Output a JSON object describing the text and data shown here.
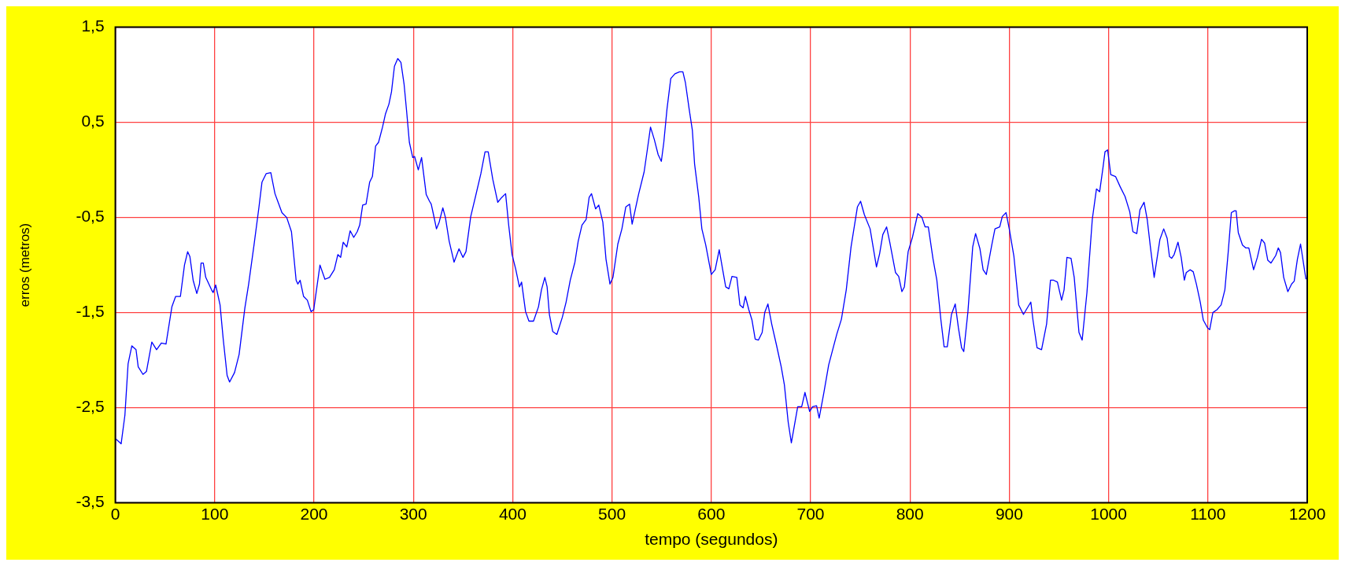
{
  "chart_data": {
    "type": "line",
    "xlabel": "tempo (segundos)",
    "ylabel": "erros (metros)",
    "xlim": [
      0,
      1200
    ],
    "xticks": [
      0,
      100,
      200,
      300,
      400,
      500,
      600,
      700,
      800,
      900,
      1000,
      1100,
      1200
    ],
    "ylim": [
      -3.5,
      1.5
    ],
    "yticks": [
      {
        "value": -3.5,
        "label": "-3,5"
      },
      {
        "value": -2.5,
        "label": "-2,5"
      },
      {
        "value": -1.5,
        "label": "-1,5"
      },
      {
        "value": -0.5,
        "label": "-0,5"
      },
      {
        "value": 0.5,
        "label": "0,5"
      },
      {
        "value": 1.5,
        "label": "1,5"
      }
    ],
    "grid": true,
    "marker": "none",
    "line_style": "solid",
    "x": [
      0.6,
      5.8,
      9.6,
      12.8,
      16.6,
      20.8,
      23,
      27.8,
      31.3,
      36.7,
      41.5,
      46.3,
      51,
      56.9,
      60.7,
      65.5,
      69.6,
      72.8,
      75,
      78.3,
      82,
      84.7,
      86.3,
      88.5,
      91,
      96.8,
      98.4,
      101,
      105.4,
      108.6,
      112.5,
      115,
      120,
      124.6,
      130.4,
      134.2,
      139.6,
      144.6,
      147.6,
      151.8,
      156.5,
      160.7,
      167.7,
      172.5,
      177.3,
      182,
      183.7,
      186,
      189.5,
      193.3,
      197,
      199.7,
      206,
      211,
      215.6,
      220.4,
      224,
      226.8,
      229.4,
      233,
      236.4,
      240,
      243.5,
      246,
      249,
      252.4,
      256,
      258.8,
      262,
      265,
      269,
      272,
      275.4,
      278,
      281,
      284.3,
      287.5,
      290.7,
      293.3,
      296,
      299.4,
      301.3,
      305,
      308.3,
      313,
      316.3,
      318,
      320.1,
      323.3,
      326,
      329.7,
      332.3,
      336.1,
      341,
      346,
      350,
      353,
      357.8,
      362.6,
      368,
      372.2,
      375.4,
      380,
      385,
      389,
      392.9,
      396,
      399.4,
      403,
      406.8,
      409,
      413,
      416.4,
      421,
      426,
      429,
      432.4,
      434.7,
      437,
      440.4,
      444.5,
      450,
      453.8,
      458,
      462.7,
      466,
      469.8,
      474,
      477,
      479.4,
      483.5,
      486.7,
      490.8,
      494,
      498,
      501,
      505.9,
      510,
      513.9,
      517.7,
      520.3,
      523.4,
      526.7,
      532.4,
      535.7,
      538.8,
      542.6,
      546.5,
      549.7,
      552.2,
      555.4,
      559.2,
      563.4,
      568,
      571.4,
      573.9,
      577.7,
      580.9,
      583.2,
      587.4,
      590.5,
      594.4,
      600,
      603.9,
      608,
      611.3,
      614.5,
      617.7,
      620.8,
      625.7,
      628.8,
      632,
      634.3,
      637.8,
      641,
      644.2,
      647.4,
      651.2,
      653.8,
      657,
      660.8,
      665.6,
      670.4,
      673.6,
      677.4,
      680.6,
      683.8,
      687,
      691,
      694.3,
      699,
      702,
      706,
      708.6,
      713.4,
      718.2,
      723,
      726.3,
      731,
      735.9,
      740.7,
      747.1,
      750.3,
      754.1,
      759.9,
      766.3,
      769.5,
      772.7,
      776.5,
      779.7,
      785.5,
      788.7,
      791.9,
      794.4,
      798.2,
      802.5,
      807.9,
      812.1,
      815.3,
      818.5,
      823.3,
      827.1,
      831.2,
      834.4,
      837.6,
      841.8,
      845.6,
      848.8,
      852,
      854.2,
      858.4,
      863.2,
      866.1,
      870.5,
      873.7,
      876.9,
      882.4,
      885.6,
      890.4,
      893,
      896.8,
      900,
      904.7,
      909.5,
      914.3,
      921.7,
      923.9,
      928,
      932.5,
      937.6,
      941.5,
      944.7,
      948.5,
      952.7,
      955.2,
      958.1,
      962.2,
      965.4,
      970.2,
      973.4,
      978.2,
      983.6,
      987.8,
      991,
      994.2,
      996.4,
      999,
      1002.2,
      1007,
      1011.8,
      1016.6,
      1021.3,
      1024.5,
      1028.4,
      1031.6,
      1035.7,
      1038.9,
      1042.1,
      1045.9,
      1051.7,
      1055.5,
      1059,
      1061.3,
      1063.5,
      1066,
      1069.9,
      1073.1,
      1076.3,
      1078.2,
      1082,
      1085.2,
      1088.4,
      1092.3,
      1095.4,
      1099.6,
      1101.8,
      1105,
      1109.1,
      1113.3,
      1117.1,
      1120.4,
      1123.6,
      1126.8,
      1128.4,
      1130.6,
      1134.8,
      1138,
      1141.2,
      1146,
      1149.8,
      1154,
      1157.1,
      1160.3,
      1163.5,
      1168.3,
      1170.9,
      1173.1,
      1176.3,
      1180.5,
      1184.3,
      1186.9,
      1190.1,
      1193.3,
      1196.5,
      1198.7
    ],
    "series": [
      {
        "color": "#0000ff",
        "values": [
          -2.83,
          -2.88,
          -2.58,
          -2.04,
          -1.85,
          -1.89,
          -2.07,
          -2.15,
          -2.12,
          -1.81,
          -1.89,
          -1.82,
          -1.83,
          -1.44,
          -1.33,
          -1.33,
          -1.0,
          -0.86,
          -0.91,
          -1.16,
          -1.3,
          -1.2,
          -0.98,
          -0.98,
          -1.13,
          -1.26,
          -1.29,
          -1.21,
          -1.42,
          -1.78,
          -2.16,
          -2.23,
          -2.13,
          -1.94,
          -1.45,
          -1.2,
          -0.79,
          -0.39,
          -0.13,
          -0.04,
          -0.03,
          -0.25,
          -0.45,
          -0.5,
          -0.65,
          -1.16,
          -1.2,
          -1.16,
          -1.33,
          -1.37,
          -1.49,
          -1.47,
          -1.0,
          -1.15,
          -1.13,
          -1.05,
          -0.89,
          -0.92,
          -0.76,
          -0.81,
          -0.64,
          -0.71,
          -0.65,
          -0.58,
          -0.37,
          -0.36,
          -0.13,
          -0.07,
          0.25,
          0.29,
          0.45,
          0.59,
          0.69,
          0.82,
          1.09,
          1.17,
          1.13,
          0.9,
          0.61,
          0.29,
          0.13,
          0.14,
          0.0,
          0.13,
          -0.26,
          -0.33,
          -0.36,
          -0.46,
          -0.62,
          -0.55,
          -0.4,
          -0.5,
          -0.75,
          -0.97,
          -0.83,
          -0.92,
          -0.86,
          -0.49,
          -0.28,
          -0.04,
          0.19,
          0.19,
          -0.1,
          -0.34,
          -0.29,
          -0.25,
          -0.58,
          -0.89,
          -1.04,
          -1.23,
          -1.18,
          -1.49,
          -1.59,
          -1.59,
          -1.44,
          -1.26,
          -1.13,
          -1.23,
          -1.52,
          -1.7,
          -1.73,
          -1.55,
          -1.39,
          -1.16,
          -0.97,
          -0.75,
          -0.58,
          -0.52,
          -0.29,
          -0.25,
          -0.41,
          -0.37,
          -0.55,
          -0.94,
          -1.2,
          -1.13,
          -0.78,
          -0.62,
          -0.39,
          -0.36,
          -0.57,
          -0.42,
          -0.26,
          -0.02,
          0.22,
          0.45,
          0.32,
          0.16,
          0.09,
          0.29,
          0.64,
          0.96,
          1.01,
          1.03,
          1.03,
          0.92,
          0.64,
          0.42,
          0.06,
          -0.29,
          -0.62,
          -0.79,
          -1.1,
          -1.05,
          -0.84,
          -1.04,
          -1.23,
          -1.25,
          -1.12,
          -1.13,
          -1.42,
          -1.45,
          -1.33,
          -1.47,
          -1.58,
          -1.78,
          -1.79,
          -1.71,
          -1.5,
          -1.41,
          -1.62,
          -1.84,
          -2.07,
          -2.26,
          -2.65,
          -2.87,
          -2.68,
          -2.49,
          -2.49,
          -2.34,
          -2.54,
          -2.49,
          -2.48,
          -2.61,
          -2.34,
          -2.05,
          -1.86,
          -1.73,
          -1.57,
          -1.26,
          -0.81,
          -0.39,
          -0.33,
          -0.47,
          -0.62,
          -1.02,
          -0.88,
          -0.68,
          -0.6,
          -0.76,
          -1.08,
          -1.12,
          -1.28,
          -1.23,
          -0.86,
          -0.71,
          -0.46,
          -0.5,
          -0.6,
          -0.6,
          -0.94,
          -1.16,
          -1.58,
          -1.86,
          -1.86,
          -1.52,
          -1.41,
          -1.66,
          -1.87,
          -1.91,
          -1.49,
          -0.81,
          -0.67,
          -0.83,
          -1.05,
          -1.1,
          -0.79,
          -0.62,
          -0.6,
          -0.49,
          -0.45,
          -0.62,
          -0.91,
          -1.42,
          -1.52,
          -1.39,
          -1.58,
          -1.87,
          -1.89,
          -1.62,
          -1.16,
          -1.16,
          -1.18,
          -1.37,
          -1.26,
          -0.92,
          -0.93,
          -1.13,
          -1.71,
          -1.79,
          -1.29,
          -0.52,
          -0.2,
          -0.23,
          0.01,
          0.19,
          0.21,
          -0.05,
          -0.07,
          -0.18,
          -0.28,
          -0.44,
          -0.65,
          -0.67,
          -0.42,
          -0.34,
          -0.52,
          -0.81,
          -1.13,
          -0.73,
          -0.62,
          -0.72,
          -0.91,
          -0.93,
          -0.89,
          -0.76,
          -0.92,
          -1.16,
          -1.08,
          -1.05,
          -1.07,
          -1.2,
          -1.39,
          -1.58,
          -1.66,
          -1.68,
          -1.5,
          -1.47,
          -1.42,
          -1.26,
          -0.87,
          -0.45,
          -0.43,
          -0.43,
          -0.66,
          -0.79,
          -0.82,
          -0.82,
          -1.05,
          -0.92,
          -0.73,
          -0.77,
          -0.95,
          -0.98,
          -0.9,
          -0.82,
          -0.87,
          -1.13,
          -1.28,
          -1.2,
          -1.17,
          -0.94,
          -0.78,
          -1.0,
          -1.15
        ]
      }
    ]
  }
}
